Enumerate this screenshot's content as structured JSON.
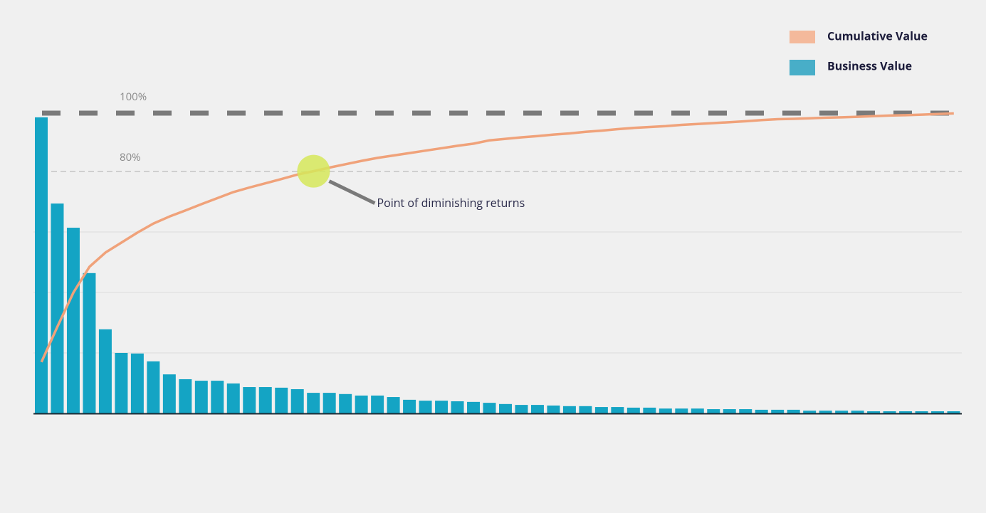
{
  "chart_data": {
    "type": "bar",
    "ylim": [
      0,
      100
    ],
    "yticks": [
      20,
      40,
      60
    ],
    "show_tick_labels": false,
    "grid": true,
    "legend": "top-right",
    "reference_lines": [
      {
        "value": 100,
        "label": "100%",
        "style": "heavy-dashed"
      },
      {
        "value": 80,
        "label": "80%",
        "style": "light-dashed"
      }
    ],
    "annotation": "Point of diminishing returns",
    "series": [
      {
        "name": "Cumulative Value",
        "type": "line",
        "color": "#f0a27a",
        "legend_color": "#f4b99b",
        "values": [
          17,
          28.7,
          40,
          48.5,
          53.2,
          56.5,
          59.8,
          62.8,
          65.1,
          67.1,
          69.2,
          71.2,
          73.2,
          74.7,
          76.1,
          77.5,
          79,
          80.1,
          81.3,
          82.4,
          83.5,
          84.5,
          85.3,
          86.1,
          86.9,
          87.7,
          88.5,
          89.2,
          90.3,
          90.8,
          91.3,
          91.7,
          92.2,
          92.6,
          93.1,
          93.5,
          94,
          94.4,
          94.7,
          95,
          95.4,
          95.7,
          96,
          96.3,
          96.6,
          97,
          97.3,
          97.4,
          97.6,
          97.8,
          97.9,
          98.1,
          98.3,
          98.5,
          98.6,
          98.8,
          99,
          99.2
        ]
      },
      {
        "name": "Business Value",
        "type": "bar",
        "color": "#14a4c4",
        "legend_color": "#48aec8",
        "values": [
          97.9,
          69.4,
          61.4,
          46.4,
          27.8,
          20,
          19.8,
          17.2,
          12.9,
          11.3,
          10.8,
          10.8,
          9.9,
          8.7,
          8.7,
          8.5,
          8,
          6.8,
          6.8,
          6.4,
          5.9,
          5.9,
          5.4,
          4.5,
          4.2,
          4.2,
          4,
          3.8,
          3.5,
          3.1,
          2.8,
          2.8,
          2.6,
          2.4,
          2.4,
          2.1,
          2.1,
          1.9,
          1.9,
          1.6,
          1.6,
          1.6,
          1.4,
          1.4,
          1.4,
          1.2,
          1.2,
          1.2,
          0.9,
          0.9,
          0.9,
          0.9,
          0.7,
          0.7,
          0.7,
          0.7,
          0.7,
          0.7
        ]
      }
    ]
  }
}
